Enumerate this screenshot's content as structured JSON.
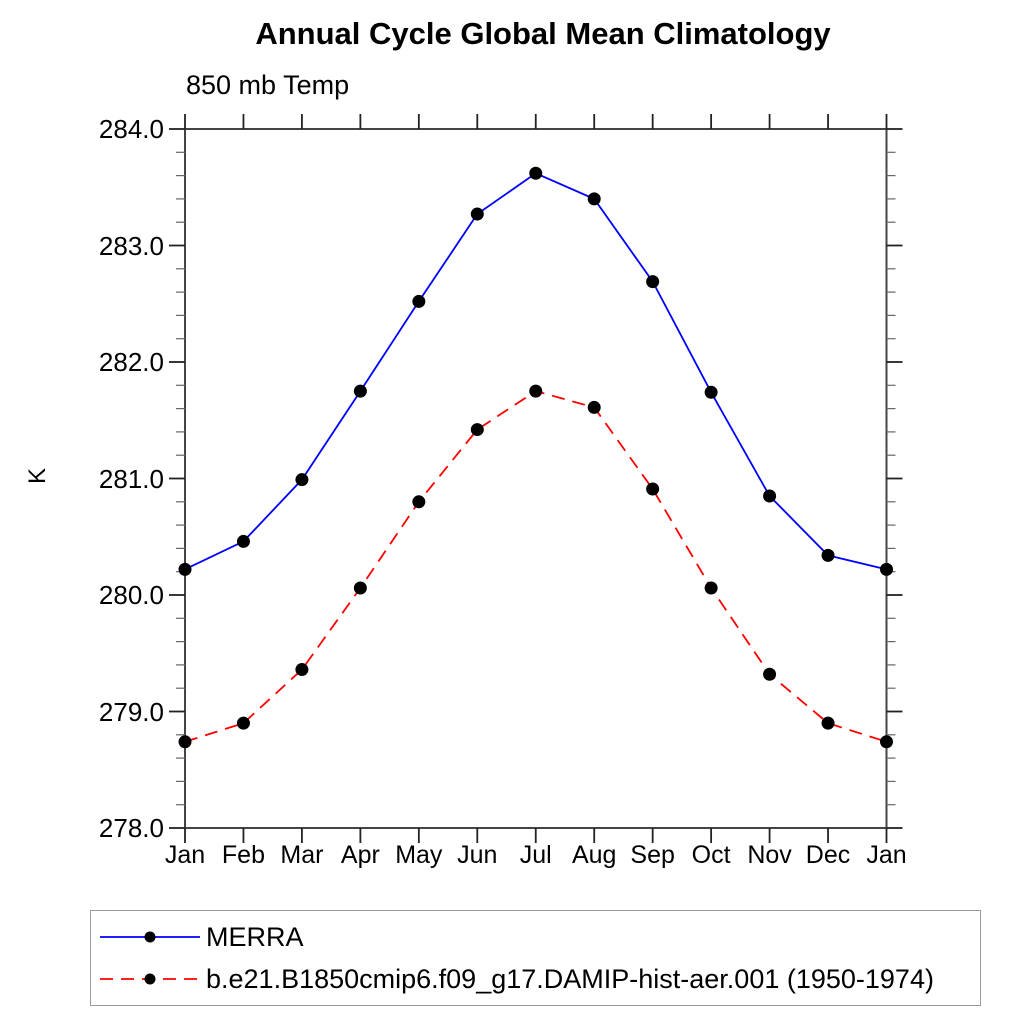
{
  "chart_data": {
    "type": "line",
    "title": "Annual Cycle Global Mean Climatology",
    "subtitle": "850 mb Temp",
    "ylabel": "K",
    "ylim": [
      278.0,
      284.0
    ],
    "y_major_tick_interval": 1.0,
    "y_minor_tick_interval": 0.2,
    "y_tick_labels": [
      "284.0",
      "283.0",
      "282.0",
      "281.0",
      "280.0",
      "279.0",
      "278.0"
    ],
    "x_categories": [
      "Jan",
      "Feb",
      "Mar",
      "Apr",
      "May",
      "Jun",
      "Jul",
      "Aug",
      "Sep",
      "Oct",
      "Nov",
      "Dec",
      "Jan"
    ],
    "grid": false,
    "frame": "box-with-outward-ticks",
    "legend_position": "below-chart-left",
    "marker_color": "#000000",
    "axis_color": "#444444",
    "series": [
      {
        "name": "MERRA",
        "line_color": "#0000ff",
        "line_style": "solid",
        "marker": "filled-circle",
        "values": [
          280.22,
          280.46,
          280.99,
          281.75,
          282.52,
          283.27,
          283.62,
          283.4,
          282.69,
          281.74,
          280.85,
          280.34,
          280.22
        ]
      },
      {
        "name": "b.e21.B1850cmip6.f09_g17.DAMIP-hist-aer.001 (1950-1974)",
        "line_color": "#ff0000",
        "line_style": "dashed",
        "marker": "filled-circle",
        "values": [
          278.74,
          278.9,
          279.36,
          280.06,
          280.8,
          281.42,
          281.75,
          281.61,
          280.91,
          280.06,
          279.32,
          278.9,
          278.74
        ]
      }
    ]
  }
}
